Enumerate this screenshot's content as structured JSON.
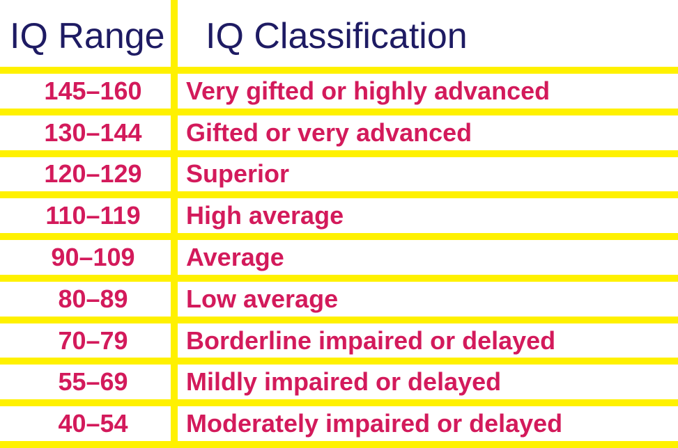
{
  "colors": {
    "background": "#FFFFFF",
    "grid_yellow": "#FFF100",
    "header_navy": "#1E1B63",
    "row_crimson": "#D31A5B"
  },
  "table": {
    "columns": [
      {
        "label": "IQ Range"
      },
      {
        "label": "IQ Classification"
      }
    ],
    "rows": [
      {
        "range": "145–160",
        "classification": "Very gifted or highly advanced"
      },
      {
        "range": "130–144",
        "classification": "Gifted or very advanced"
      },
      {
        "range": "120–129",
        "classification": "Superior"
      },
      {
        "range": "110–119",
        "classification": "High average"
      },
      {
        "range": "90–109",
        "classification": "Average"
      },
      {
        "range": "80–89",
        "classification": "Low average"
      },
      {
        "range": "70–79",
        "classification": "Borderline impaired or delayed"
      },
      {
        "range": "55–69",
        "classification": "Mildly impaired or delayed"
      },
      {
        "range": "40–54",
        "classification": "Moderately impaired or delayed"
      }
    ]
  }
}
